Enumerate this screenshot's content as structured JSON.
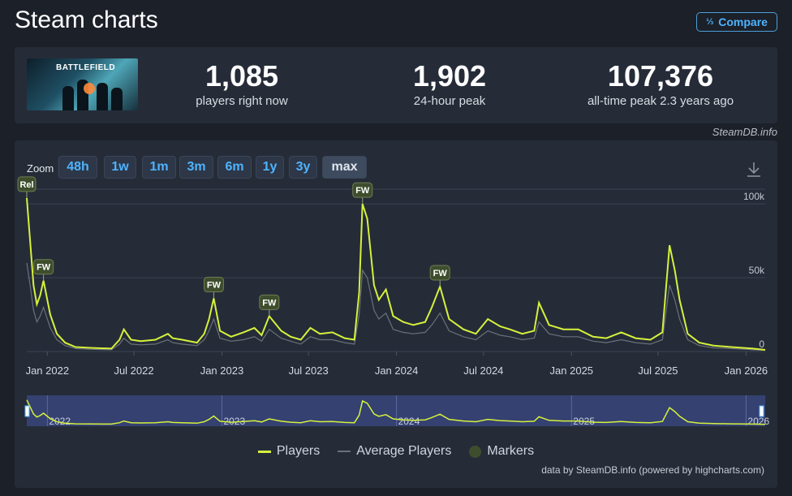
{
  "header": {
    "title": "Steam charts",
    "compare_label": "Compare",
    "compare_icon": "fraction-compare-icon"
  },
  "stats": {
    "game_thumbnail_text": "BATTLEFIELD",
    "current": {
      "value": "1,085",
      "label": "players right now"
    },
    "peak24": {
      "value": "1,902",
      "label": "24-hour peak"
    },
    "alltime": {
      "value": "107,376",
      "label": "all-time peak 2.3 years ago"
    },
    "credit": "SteamDB.info"
  },
  "zoom": {
    "label": "Zoom",
    "options": [
      "48h",
      "1w",
      "1m",
      "3m",
      "6m",
      "1y",
      "3y",
      "max"
    ],
    "selected": "max"
  },
  "colors": {
    "players": "#d6f13c",
    "average": "#6b717a",
    "marker": "#3e4e2d",
    "accent": "#4fb3ff"
  },
  "chart_data": {
    "type": "line",
    "xlabel": "",
    "ylabel": "",
    "ylim": [
      0,
      110000
    ],
    "y_ticks": [
      0,
      50000,
      100000
    ],
    "y_tick_labels": [
      "0",
      "50k",
      "100k"
    ],
    "x_ticks": [
      "2022-01",
      "2022-07",
      "2023-01",
      "2023-07",
      "2024-01",
      "2024-07",
      "2025-01",
      "2025-07",
      "2026-01"
    ],
    "x_tick_labels": [
      "Jan 2022",
      "Jul 2022",
      "Jan 2023",
      "Jul 2023",
      "Jan 2024",
      "Jul 2024",
      "Jan 2025",
      "Jul 2025",
      "Jan 2026"
    ],
    "navigator_labels": [
      "2022",
      "2023",
      "2024",
      "2025",
      "2026"
    ],
    "grid": true,
    "series": [
      {
        "name": "Players",
        "x": [
          "2021-11-19",
          "2021-11-26",
          "2021-12-03",
          "2021-12-10",
          "2021-12-17",
          "2021-12-24",
          "2022-01-07",
          "2022-01-21",
          "2022-02-07",
          "2022-03-01",
          "2022-04-01",
          "2022-05-15",
          "2022-06-01",
          "2022-06-10",
          "2022-06-25",
          "2022-07-15",
          "2022-08-15",
          "2022-09-10",
          "2022-09-20",
          "2022-10-10",
          "2022-11-10",
          "2022-11-25",
          "2022-12-05",
          "2022-12-15",
          "2022-12-28",
          "2023-01-20",
          "2023-02-15",
          "2023-03-10",
          "2023-03-25",
          "2023-04-10",
          "2023-05-05",
          "2023-05-25",
          "2023-06-15",
          "2023-07-05",
          "2023-07-25",
          "2023-08-20",
          "2023-09-15",
          "2023-10-05",
          "2023-10-15",
          "2023-10-22",
          "2023-11-01",
          "2023-11-15",
          "2023-11-25",
          "2023-12-10",
          "2023-12-25",
          "2024-01-15",
          "2024-02-05",
          "2024-03-01",
          "2024-03-15",
          "2024-04-01",
          "2024-04-20",
          "2024-05-20",
          "2024-06-15",
          "2024-07-10",
          "2024-08-05",
          "2024-08-25",
          "2024-09-20",
          "2024-10-15",
          "2024-10-25",
          "2024-11-15",
          "2024-12-15",
          "2025-01-15",
          "2025-02-15",
          "2025-03-15",
          "2025-04-15",
          "2025-05-15",
          "2025-06-15",
          "2025-07-10",
          "2025-07-25",
          "2025-08-05",
          "2025-08-15",
          "2025-09-01",
          "2025-09-25",
          "2025-10-25",
          "2025-12-01",
          "2026-01-15",
          "2026-02-10"
        ],
        "values": [
          104000,
          75000,
          45000,
          32000,
          38000,
          48000,
          25000,
          12000,
          6000,
          3000,
          2500,
          2000,
          8000,
          15000,
          8000,
          7000,
          8000,
          12000,
          9000,
          8000,
          6000,
          12000,
          22000,
          36000,
          14000,
          10000,
          13000,
          16000,
          11000,
          24000,
          14000,
          10000,
          8000,
          16000,
          12000,
          13000,
          9000,
          8000,
          40000,
          100000,
          90000,
          45000,
          35000,
          42000,
          24000,
          20000,
          18000,
          20000,
          30000,
          44000,
          22000,
          15000,
          12000,
          22000,
          17000,
          15000,
          12000,
          14000,
          33000,
          18000,
          15000,
          15000,
          10000,
          9000,
          13000,
          9000,
          8000,
          13000,
          72000,
          55000,
          35000,
          12000,
          6000,
          4000,
          3000,
          2000,
          1085
        ]
      },
      {
        "name": "Average Players",
        "x": [
          "2021-11-19",
          "2021-11-26",
          "2021-12-03",
          "2021-12-10",
          "2021-12-17",
          "2021-12-24",
          "2022-01-07",
          "2022-01-21",
          "2022-02-07",
          "2022-03-01",
          "2022-04-01",
          "2022-05-15",
          "2022-06-01",
          "2022-06-10",
          "2022-06-25",
          "2022-07-15",
          "2022-08-15",
          "2022-09-10",
          "2022-09-20",
          "2022-10-10",
          "2022-11-10",
          "2022-11-25",
          "2022-12-05",
          "2022-12-15",
          "2022-12-28",
          "2023-01-20",
          "2023-02-15",
          "2023-03-10",
          "2023-03-25",
          "2023-04-10",
          "2023-05-05",
          "2023-05-25",
          "2023-06-15",
          "2023-07-05",
          "2023-07-25",
          "2023-08-20",
          "2023-09-15",
          "2023-10-05",
          "2023-10-15",
          "2023-10-22",
          "2023-11-01",
          "2023-11-15",
          "2023-11-25",
          "2023-12-10",
          "2023-12-25",
          "2024-01-15",
          "2024-02-05",
          "2024-03-01",
          "2024-03-15",
          "2024-04-01",
          "2024-04-20",
          "2024-05-20",
          "2024-06-15",
          "2024-07-10",
          "2024-08-05",
          "2024-08-25",
          "2024-09-20",
          "2024-10-15",
          "2024-10-25",
          "2024-11-15",
          "2024-12-15",
          "2025-01-15",
          "2025-02-15",
          "2025-03-15",
          "2025-04-15",
          "2025-05-15",
          "2025-06-15",
          "2025-07-10",
          "2025-07-25",
          "2025-08-05",
          "2025-08-15",
          "2025-09-01",
          "2025-09-25",
          "2025-10-25",
          "2025-12-01",
          "2026-01-15",
          "2026-02-10"
        ],
        "values": [
          60000,
          45000,
          28000,
          20000,
          24000,
          30000,
          16000,
          8000,
          4000,
          2000,
          1500,
          1200,
          5000,
          9000,
          5000,
          4500,
          5000,
          8000,
          6000,
          5000,
          4000,
          8000,
          14000,
          22000,
          9000,
          7000,
          8000,
          10000,
          7000,
          15000,
          9000,
          7000,
          5000,
          10000,
          8000,
          8000,
          6000,
          5000,
          25000,
          55000,
          50000,
          28000,
          22000,
          26000,
          15000,
          13000,
          12000,
          13000,
          18000,
          26000,
          14000,
          10000,
          8000,
          14000,
          11000,
          10000,
          8000,
          9000,
          20000,
          12000,
          10000,
          10000,
          7000,
          6000,
          8000,
          6000,
          5000,
          8000,
          45000,
          35000,
          22000,
          8000,
          4000,
          2500,
          2000,
          1200,
          900
        ]
      }
    ],
    "markers": [
      {
        "label": "Rel",
        "date": "2021-11-19",
        "value": 104000
      },
      {
        "label": "FW",
        "date": "2021-12-24",
        "value": 48000
      },
      {
        "label": "FW",
        "date": "2022-12-15",
        "value": 36000
      },
      {
        "label": "FW",
        "date": "2023-04-10",
        "value": 24000
      },
      {
        "label": "FW",
        "date": "2023-10-22",
        "value": 100000
      },
      {
        "label": "FW",
        "date": "2024-04-01",
        "value": 44000
      }
    ]
  },
  "legend": {
    "players": "Players",
    "average": "Average Players",
    "markers": "Markers"
  },
  "credit_bottom": "data by SteamDB.info (powered by highcharts.com)"
}
